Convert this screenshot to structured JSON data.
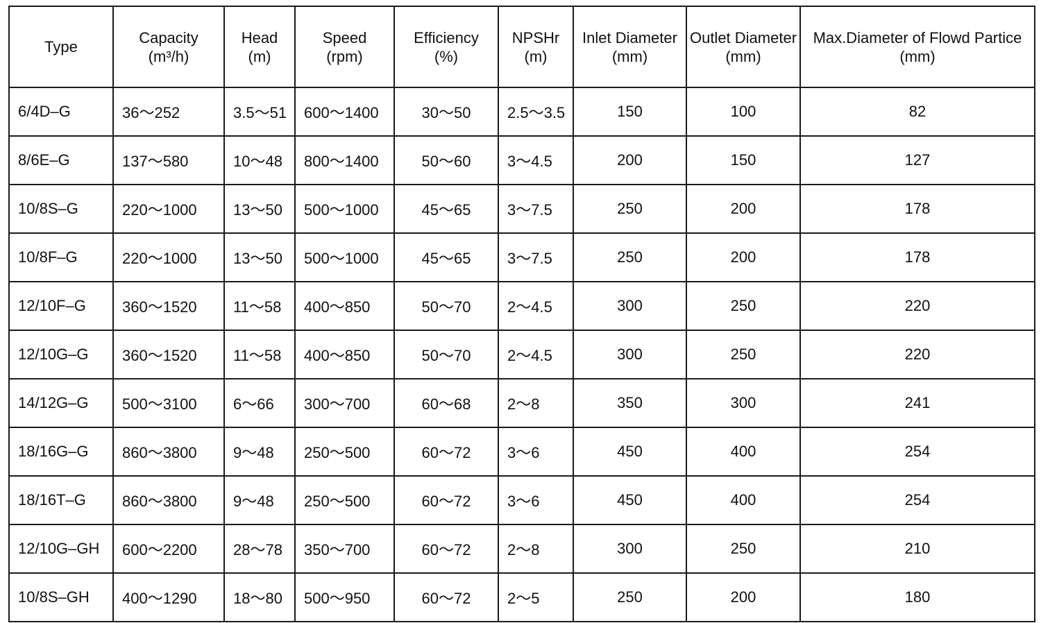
{
  "table": {
    "header": [
      {
        "name": "Type"
      },
      {
        "name": "Capacity",
        "unit": "(m³/h)"
      },
      {
        "name": "Head",
        "unit": "(m)"
      },
      {
        "name": "Speed",
        "unit": "(rpm)"
      },
      {
        "name": "Efficiency",
        "unit": "(%)"
      },
      {
        "name": "NPSHr",
        "unit": "(m)"
      },
      {
        "name": "Inlet Diameter",
        "unit": "(mm)"
      },
      {
        "name": "Outlet Diameter",
        "unit": "(mm)"
      },
      {
        "name": "Max.Diameter of Flowd Partice",
        "unit": "(mm)"
      }
    ],
    "rows": [
      [
        "6/4D–G",
        "36～252",
        "3.5～51",
        "600～1400",
        "30～50",
        "2.5～3.5",
        150,
        100,
        82
      ],
      [
        "8/6E–G",
        "137～580",
        "10～48",
        "800～1400",
        "50～60",
        "3～4.5",
        200,
        150,
        127
      ],
      [
        "10/8S–G",
        "220～1000",
        "13～50",
        "500～1000",
        "45～65",
        "3～7.5",
        250,
        200,
        178
      ],
      [
        "10/8F–G",
        "220～1000",
        "13～50",
        "500～1000",
        "45～65",
        "3～7.5",
        250,
        200,
        178
      ],
      [
        "12/10F–G",
        "360～1520",
        "11～58",
        "400～850",
        "50～70",
        "2～4.5",
        300,
        250,
        220
      ],
      [
        "12/10G–G",
        "360～1520",
        "11～58",
        "400～850",
        "50～70",
        "2～4.5",
        300,
        250,
        220
      ],
      [
        "14/12G–G",
        "500～3100",
        "6～66",
        "300～700",
        "60～68",
        "2～8",
        350,
        300,
        241
      ],
      [
        "18/16G–G",
        "860～3800",
        "9～48",
        "250～500",
        "60～72",
        "3～6",
        450,
        400,
        254
      ],
      [
        "18/16T–G",
        "860～3800",
        "9～48",
        "250～500",
        "60～72",
        "3～6",
        450,
        400,
        254
      ],
      [
        "12/10G–GH",
        "600～2200",
        "28～78",
        "350～700",
        "60～72",
        "2～8",
        300,
        250,
        210
      ],
      [
        "10/8S–GH",
        "400～1290",
        "18～80",
        "500～950",
        "60～72",
        "2～5",
        250,
        200,
        180
      ]
    ]
  }
}
